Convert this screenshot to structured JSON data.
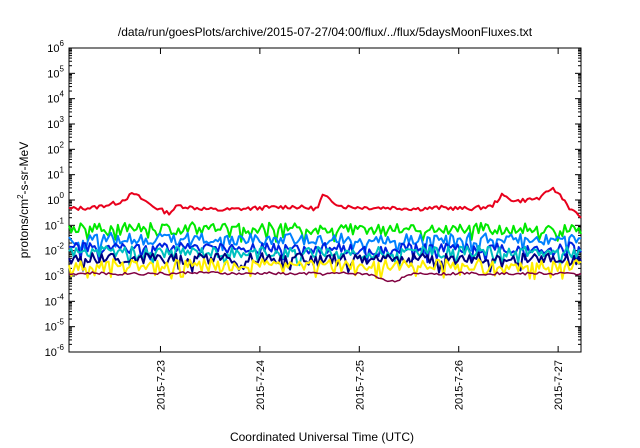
{
  "chart_data": {
    "type": "line",
    "title": "/data/run/goesPlots/archive/2015-07-27/04:00/flux/../flux/5daysMoonFluxes.txt",
    "xlabel": "Coordinated Universal Time (UTC)",
    "ylabel": "protons/cm²-s-sr-MeV",
    "ylabel_parts": {
      "before": "protons/cm",
      "sup": "2",
      "after": "-s-sr-MeV"
    },
    "yscale": "log",
    "ylim": [
      1e-06,
      1000000.0
    ],
    "y_ticks": [
      {
        "base": "10",
        "exp": "-6"
      },
      {
        "base": "10",
        "exp": "-5"
      },
      {
        "base": "10",
        "exp": "-4"
      },
      {
        "base": "10",
        "exp": "-3"
      },
      {
        "base": "10",
        "exp": "-2"
      },
      {
        "base": "10",
        "exp": "-1"
      },
      {
        "base": "10",
        "exp": "0"
      },
      {
        "base": "10",
        "exp": "1"
      },
      {
        "base": "10",
        "exp": "2"
      },
      {
        "base": "10",
        "exp": "3"
      },
      {
        "base": "10",
        "exp": "4"
      },
      {
        "base": "10",
        "exp": "5"
      },
      {
        "base": "10",
        "exp": "6"
      }
    ],
    "x_unit": "days",
    "xlim": [
      22.0,
      27.15
    ],
    "x_ticks": [
      {
        "value": 22.92,
        "label": "2015-7-23"
      },
      {
        "value": 23.92,
        "label": "2015-7-24"
      },
      {
        "value": 24.92,
        "label": "2015-7-25"
      },
      {
        "value": 25.92,
        "label": "2015-7-26"
      },
      {
        "value": 26.92,
        "label": "2015-7-27"
      }
    ],
    "x": [
      22.0,
      22.25,
      22.5,
      22.65,
      22.75,
      22.85,
      23.0,
      23.1,
      23.25,
      23.5,
      23.75,
      24.0,
      24.25,
      24.5,
      24.55,
      24.75,
      25.0,
      25.25,
      25.5,
      25.75,
      26.0,
      26.25,
      26.35,
      26.5,
      26.75,
      26.85,
      26.95,
      27.05,
      27.15
    ],
    "series": [
      {
        "color": "#e8001c",
        "values": [
          0.45,
          0.5,
          0.8,
          1.8,
          1.0,
          0.55,
          0.3,
          0.6,
          0.5,
          0.4,
          0.45,
          0.5,
          0.55,
          0.45,
          1.5,
          0.55,
          0.5,
          0.5,
          0.45,
          0.5,
          0.45,
          0.55,
          1.5,
          0.9,
          1.2,
          3.0,
          1.5,
          0.4,
          0.22
        ]
      },
      {
        "color": "#00e800",
        "values": [
          0.08,
          0.07,
          0.08,
          0.075,
          0.07,
          0.08,
          0.075,
          0.07,
          0.08,
          0.075,
          0.07,
          0.08,
          0.075,
          0.07,
          0.08,
          0.075,
          0.07,
          0.08,
          0.075,
          0.07,
          0.08,
          0.075,
          0.07,
          0.08,
          0.075,
          0.07,
          0.08,
          0.075,
          0.07
        ]
      },
      {
        "color": "#0080ff",
        "values": [
          0.03,
          0.028,
          0.032,
          0.03,
          0.027,
          0.03,
          0.029,
          0.028,
          0.031,
          0.029,
          0.027,
          0.03,
          0.029,
          0.028,
          0.031,
          0.029,
          0.027,
          0.03,
          0.029,
          0.028,
          0.031,
          0.029,
          0.027,
          0.03,
          0.029,
          0.028,
          0.031,
          0.029,
          0.027
        ]
      },
      {
        "color": "#0020e0",
        "values": [
          0.013,
          0.012,
          0.014,
          0.013,
          0.012,
          0.013,
          0.012,
          0.013,
          0.014,
          0.013,
          0.012,
          0.013,
          0.012,
          0.013,
          0.014,
          0.013,
          0.012,
          0.013,
          0.012,
          0.013,
          0.014,
          0.013,
          0.012,
          0.013,
          0.012,
          0.013,
          0.014,
          0.013,
          0.012
        ]
      },
      {
        "color": "#00c0c0",
        "values": [
          0.009,
          0.0085,
          0.0095,
          0.009,
          0.0085,
          0.009,
          0.0088,
          0.0086,
          0.0094,
          0.009,
          0.0085,
          0.009,
          0.0088,
          0.0086,
          0.0094,
          0.009,
          0.0085,
          0.009,
          0.0088,
          0.0086,
          0.0094,
          0.009,
          0.0085,
          0.009,
          0.0088,
          0.0086,
          0.0094,
          0.009,
          0.0085
        ]
      },
      {
        "color": "#000080",
        "values": [
          0.005,
          0.0048,
          0.0052,
          0.005,
          0.0047,
          0.005,
          0.0049,
          0.0048,
          0.0051,
          0.005,
          0.0047,
          0.005,
          0.0049,
          0.0048,
          0.0051,
          0.005,
          0.0047,
          0.005,
          0.0049,
          0.0048,
          0.0051,
          0.005,
          0.0047,
          0.005,
          0.0049,
          0.0048,
          0.0051,
          0.005,
          0.0047
        ]
      },
      {
        "color": "#ffee00",
        "values": [
          0.0028,
          0.0027,
          0.0029,
          0.0028,
          0.0027,
          0.0028,
          0.0027,
          0.0028,
          0.0029,
          0.0028,
          0.0027,
          0.0028,
          0.0027,
          0.0028,
          0.0029,
          0.0028,
          0.0027,
          0.0028,
          0.0027,
          0.0028,
          0.0029,
          0.0028,
          0.0027,
          0.0028,
          0.0027,
          0.0028,
          0.0029,
          0.0028,
          0.0027
        ]
      },
      {
        "color": "#800040",
        "values": [
          0.0012,
          0.0013,
          0.0012,
          0.0013,
          0.0012,
          0.0013,
          0.0012,
          0.0013,
          0.0014,
          0.0013,
          0.0012,
          0.0013,
          0.0012,
          0.0013,
          0.0012,
          0.0013,
          0.0012,
          0.0006,
          0.0013,
          0.0012,
          0.0013,
          0.0012,
          0.0013,
          0.0012,
          0.0013,
          0.0012,
          0.0013,
          0.0012,
          0.0012
        ]
      }
    ]
  }
}
